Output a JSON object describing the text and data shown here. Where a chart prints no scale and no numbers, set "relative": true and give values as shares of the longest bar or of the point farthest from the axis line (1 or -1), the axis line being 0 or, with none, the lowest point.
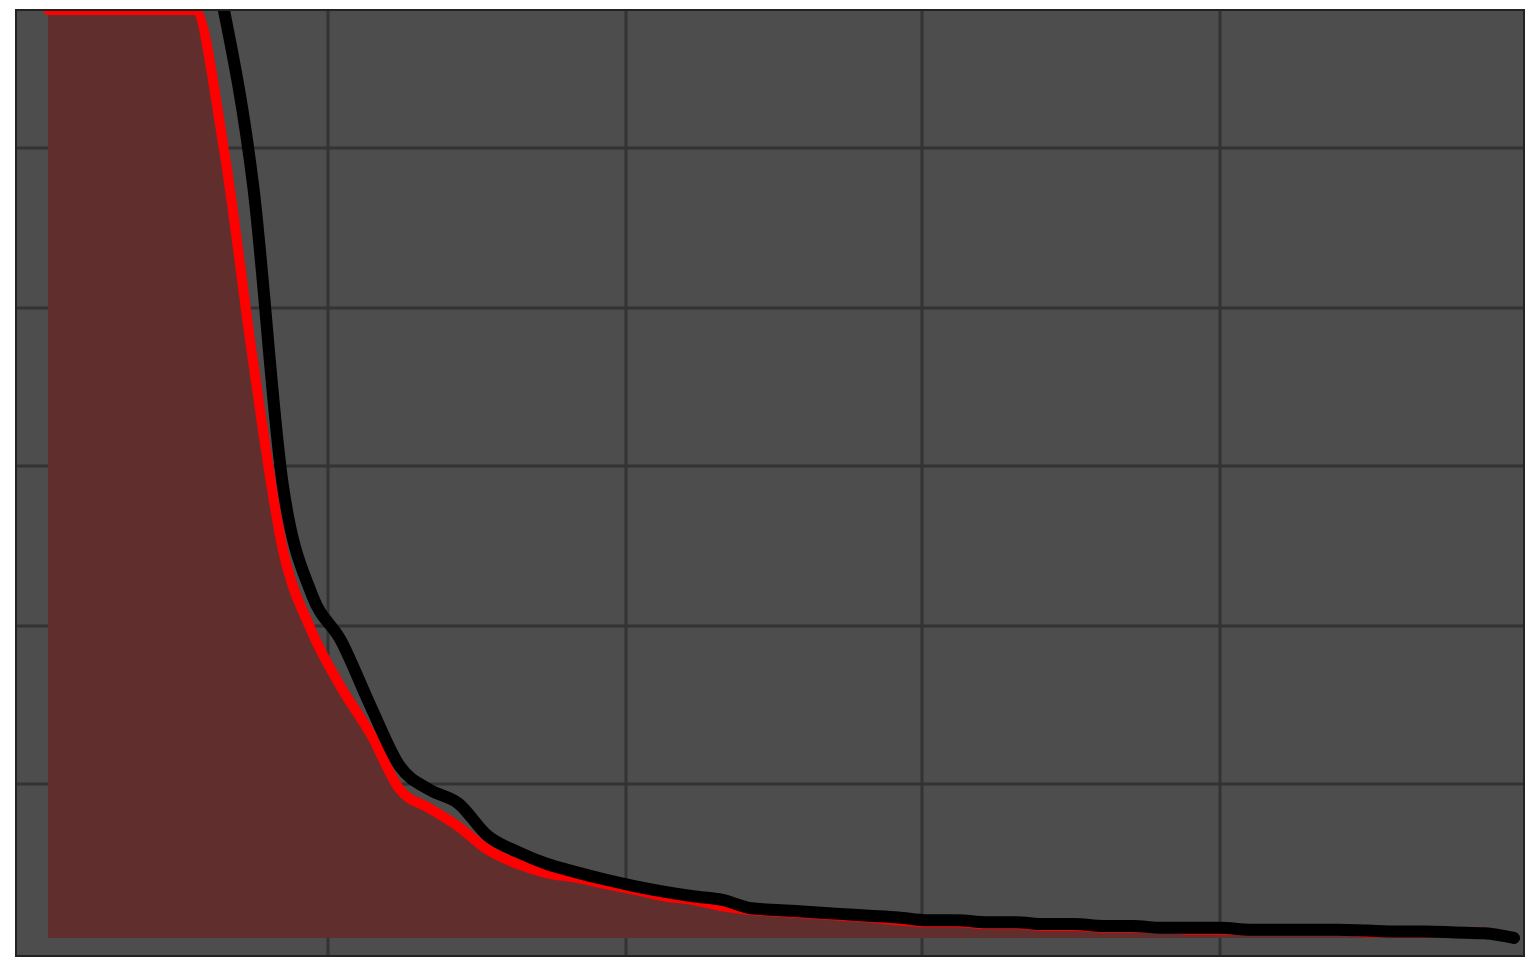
{
  "chart_data": {
    "type": "line",
    "relative": true,
    "grid": true,
    "tick_labels": false,
    "categories": [
      null,
      null,
      null,
      null,
      null,
      null,
      null,
      null,
      null,
      null,
      null,
      null,
      null,
      null,
      null,
      null,
      null,
      null,
      null,
      null,
      null,
      null,
      null,
      null,
      null,
      null,
      null,
      null,
      null,
      null,
      null,
      null,
      null,
      null,
      null,
      null,
      null,
      null,
      null,
      null,
      null,
      null,
      null,
      null,
      null,
      null,
      null,
      null,
      null,
      null,
      null
    ],
    "series": [
      {
        "type": "area",
        "color": "#ff0000",
        "values": [
          1,
          1,
          1,
          1,
          1,
          1,
          0.85,
          0.62,
          0.42,
          0.33,
          0.27,
          0.22,
          0.16,
          0.14,
          0.12,
          0.095,
          0.08,
          0.07,
          0.065,
          0.058,
          0.052,
          0.045,
          0.041,
          0.034,
          0.03,
          0.028,
          0.026,
          0.024,
          0.022,
          0.019,
          0.017,
          0.017,
          0.015,
          0.015,
          0.013,
          0.013,
          0.011,
          0.011,
          0.011,
          0.009,
          0.009,
          0.009,
          0.009,
          0.009,
          0.009,
          0.006,
          0.006,
          0.006,
          0.006,
          0.006,
          0
        ]
      },
      {
        "type": "line",
        "color": "#000000",
        "values": [
          null,
          null,
          null,
          null,
          null,
          null,
          1,
          0.81,
          0.49,
          0.37,
          0.32,
          0.25,
          0.185,
          0.16,
          0.145,
          0.11,
          0.093,
          0.08,
          0.071,
          0.063,
          0.056,
          0.05,
          0.045,
          0.041,
          0.032,
          0.03,
          0.028,
          0.026,
          0.024,
          0.022,
          0.019,
          0.019,
          0.017,
          0.017,
          0.015,
          0.015,
          0.013,
          0.013,
          0.011,
          0.011,
          0.011,
          0.009,
          0.009,
          0.009,
          0.009,
          0.008,
          0.007,
          0.007,
          0.006,
          0.005,
          0
        ]
      }
    ]
  }
}
